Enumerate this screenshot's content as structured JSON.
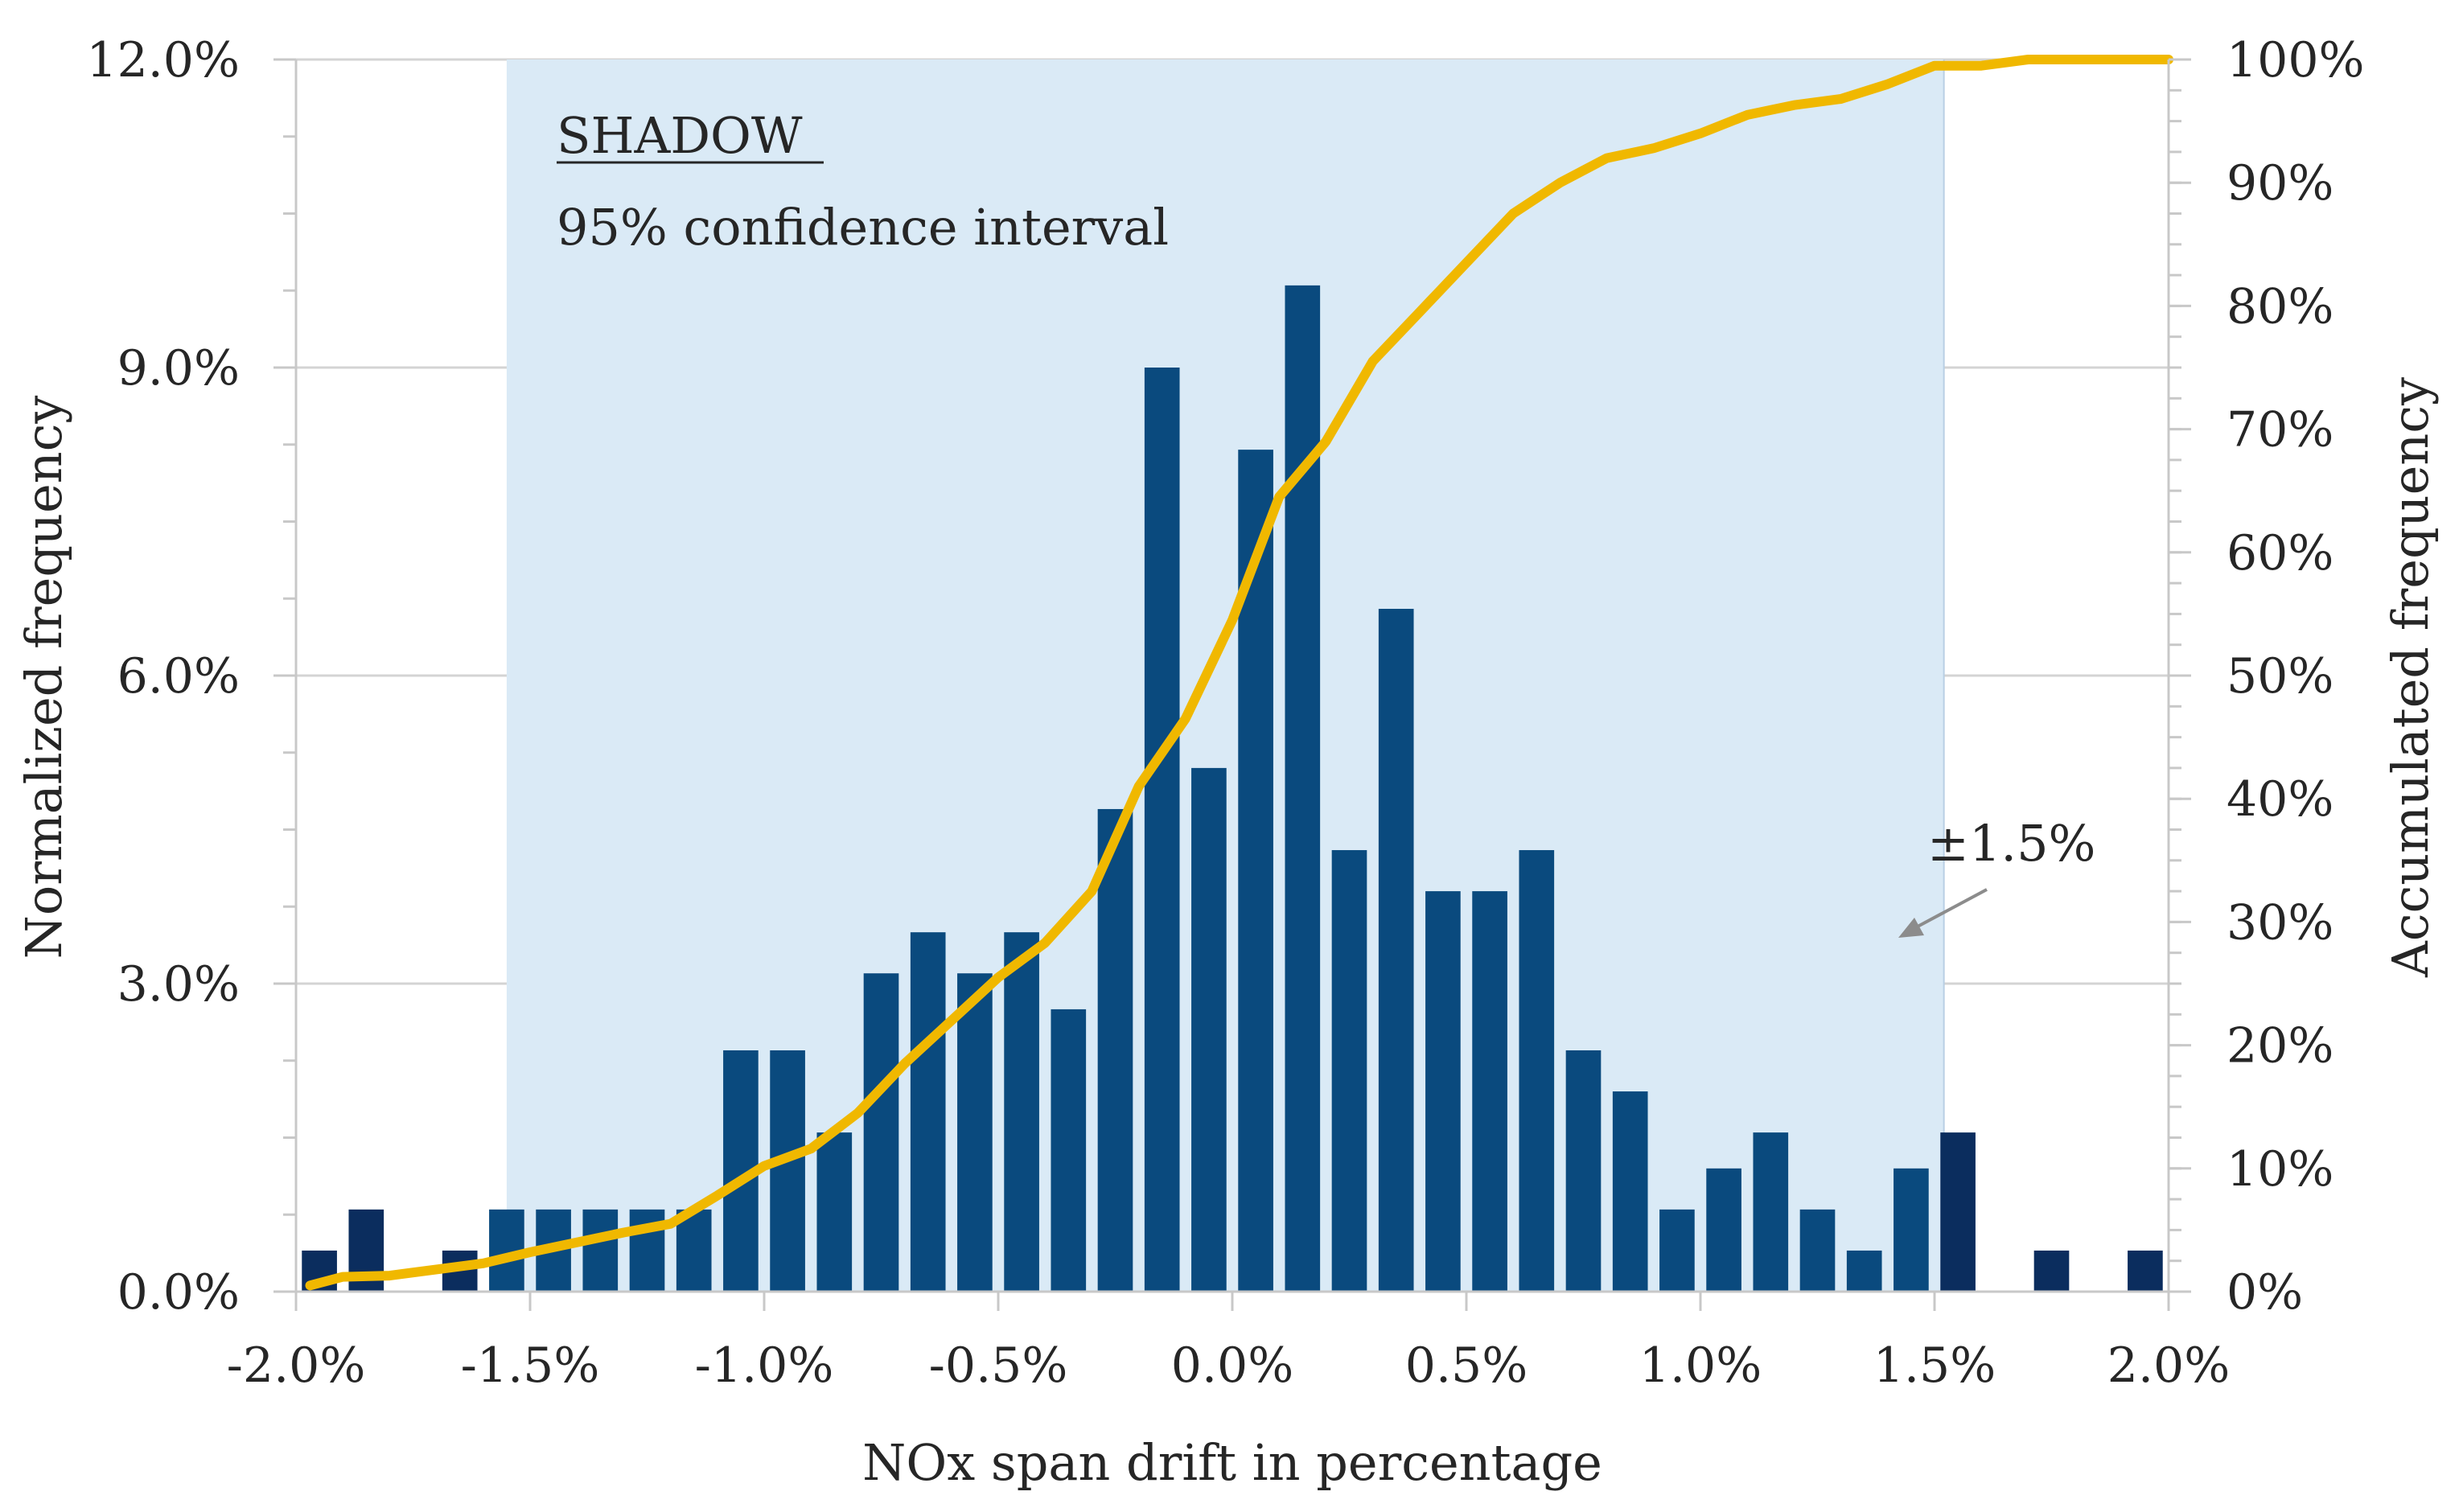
{
  "chart_data": {
    "type": "bar+line",
    "xlabel": "NOx span drift in percentage",
    "ylabel_left": "Normalized frequency",
    "ylabel_right": "Accumulated frequency",
    "xlim": [
      -2.0,
      2.0
    ],
    "ylim_left": [
      0,
      12
    ],
    "ylim_right": [
      0,
      100
    ],
    "x_ticks": [
      {
        "value": -2.0,
        "label": "-2.0%"
      },
      {
        "value": -1.5,
        "label": "-1.5%"
      },
      {
        "value": -1.0,
        "label": "-1.0%"
      },
      {
        "value": -0.5,
        "label": "-0.5%"
      },
      {
        "value": 0.0,
        "label": "0.0%"
      },
      {
        "value": 0.5,
        "label": "0.5%"
      },
      {
        "value": 1.0,
        "label": "1.0%"
      },
      {
        "value": 1.5,
        "label": "1.5%"
      },
      {
        "value": 2.0,
        "label": "2.0%"
      }
    ],
    "y_left_ticks": [
      {
        "value": 0,
        "label": "0.0%"
      },
      {
        "value": 3,
        "label": "3.0%"
      },
      {
        "value": 6,
        "label": "6.0%"
      },
      {
        "value": 9,
        "label": "9.0%"
      },
      {
        "value": 12,
        "label": "12.0%"
      }
    ],
    "y_right_ticks": [
      {
        "value": 0,
        "label": "0%"
      },
      {
        "value": 10,
        "label": "10%"
      },
      {
        "value": 20,
        "label": "20%"
      },
      {
        "value": 30,
        "label": "30%"
      },
      {
        "value": 40,
        "label": "40%"
      },
      {
        "value": 50,
        "label": "50%"
      },
      {
        "value": 60,
        "label": "60%"
      },
      {
        "value": 70,
        "label": "70%"
      },
      {
        "value": 80,
        "label": "80%"
      },
      {
        "value": 90,
        "label": "90%"
      },
      {
        "value": 100,
        "label": "100%"
      }
    ],
    "shaded_interval": {
      "from": -1.55,
      "to": 1.52,
      "color": "#daeaf6",
      "border_color": "#b8cfe4"
    },
    "annotations": {
      "title": "SHADOW",
      "subtitle": "95% confidence interval",
      "range_label": "±1.5%"
    },
    "bars": {
      "name": "Normalized frequency",
      "width": 0.075,
      "color_inside": "#0a4a7e",
      "color_outside": "#0b2d5e",
      "x": [
        -1.95,
        -1.85,
        -1.65,
        -1.55,
        -1.45,
        -1.35,
        -1.25,
        -1.15,
        -1.05,
        -0.95,
        -0.85,
        -0.75,
        -0.65,
        -0.55,
        -0.45,
        -0.35,
        -0.25,
        -0.15,
        -0.05,
        0.05,
        0.15,
        0.25,
        0.35,
        0.45,
        0.55,
        0.65,
        0.75,
        0.85,
        0.95,
        1.05,
        1.15,
        1.25,
        1.35,
        1.45,
        1.55,
        1.75,
        1.95
      ],
      "values": [
        0.4,
        0.8,
        0.4,
        0.8,
        0.8,
        0.8,
        0.8,
        0.8,
        2.35,
        2.35,
        1.55,
        3.1,
        3.5,
        3.1,
        3.5,
        2.75,
        4.7,
        9.0,
        5.1,
        8.2,
        9.8,
        4.3,
        6.65,
        3.9,
        3.9,
        4.3,
        2.35,
        1.95,
        0.8,
        1.2,
        1.55,
        0.8,
        0.4,
        1.2,
        1.55,
        0.4,
        0.4
      ]
    },
    "line": {
      "name": "Accumulated frequency",
      "color": "#f0b800",
      "x": [
        -1.97,
        -1.9,
        -1.8,
        -1.7,
        -1.6,
        -1.5,
        -1.4,
        -1.3,
        -1.2,
        -1.1,
        -1.0,
        -0.9,
        -0.8,
        -0.7,
        -0.6,
        -0.5,
        -0.4,
        -0.3,
        -0.2,
        -0.1,
        0.0,
        0.1,
        0.2,
        0.3,
        0.4,
        0.5,
        0.6,
        0.7,
        0.8,
        0.9,
        1.0,
        1.1,
        1.2,
        1.3,
        1.4,
        1.5,
        1.6,
        1.7,
        1.8,
        1.9,
        2.0
      ],
      "values": [
        0.5,
        1.2,
        1.3,
        1.8,
        2.3,
        3.2,
        4.0,
        4.8,
        5.5,
        7.8,
        10.2,
        11.6,
        14.5,
        18.5,
        22.0,
        25.5,
        28.3,
        32.5,
        41.0,
        46.5,
        54.5,
        64.5,
        69.0,
        75.5,
        79.5,
        83.5,
        87.5,
        90.0,
        92.0,
        92.8,
        94.0,
        95.5,
        96.3,
        96.8,
        98.0,
        99.5,
        99.5,
        100.0,
        100.0,
        100.0,
        100.0
      ]
    }
  }
}
